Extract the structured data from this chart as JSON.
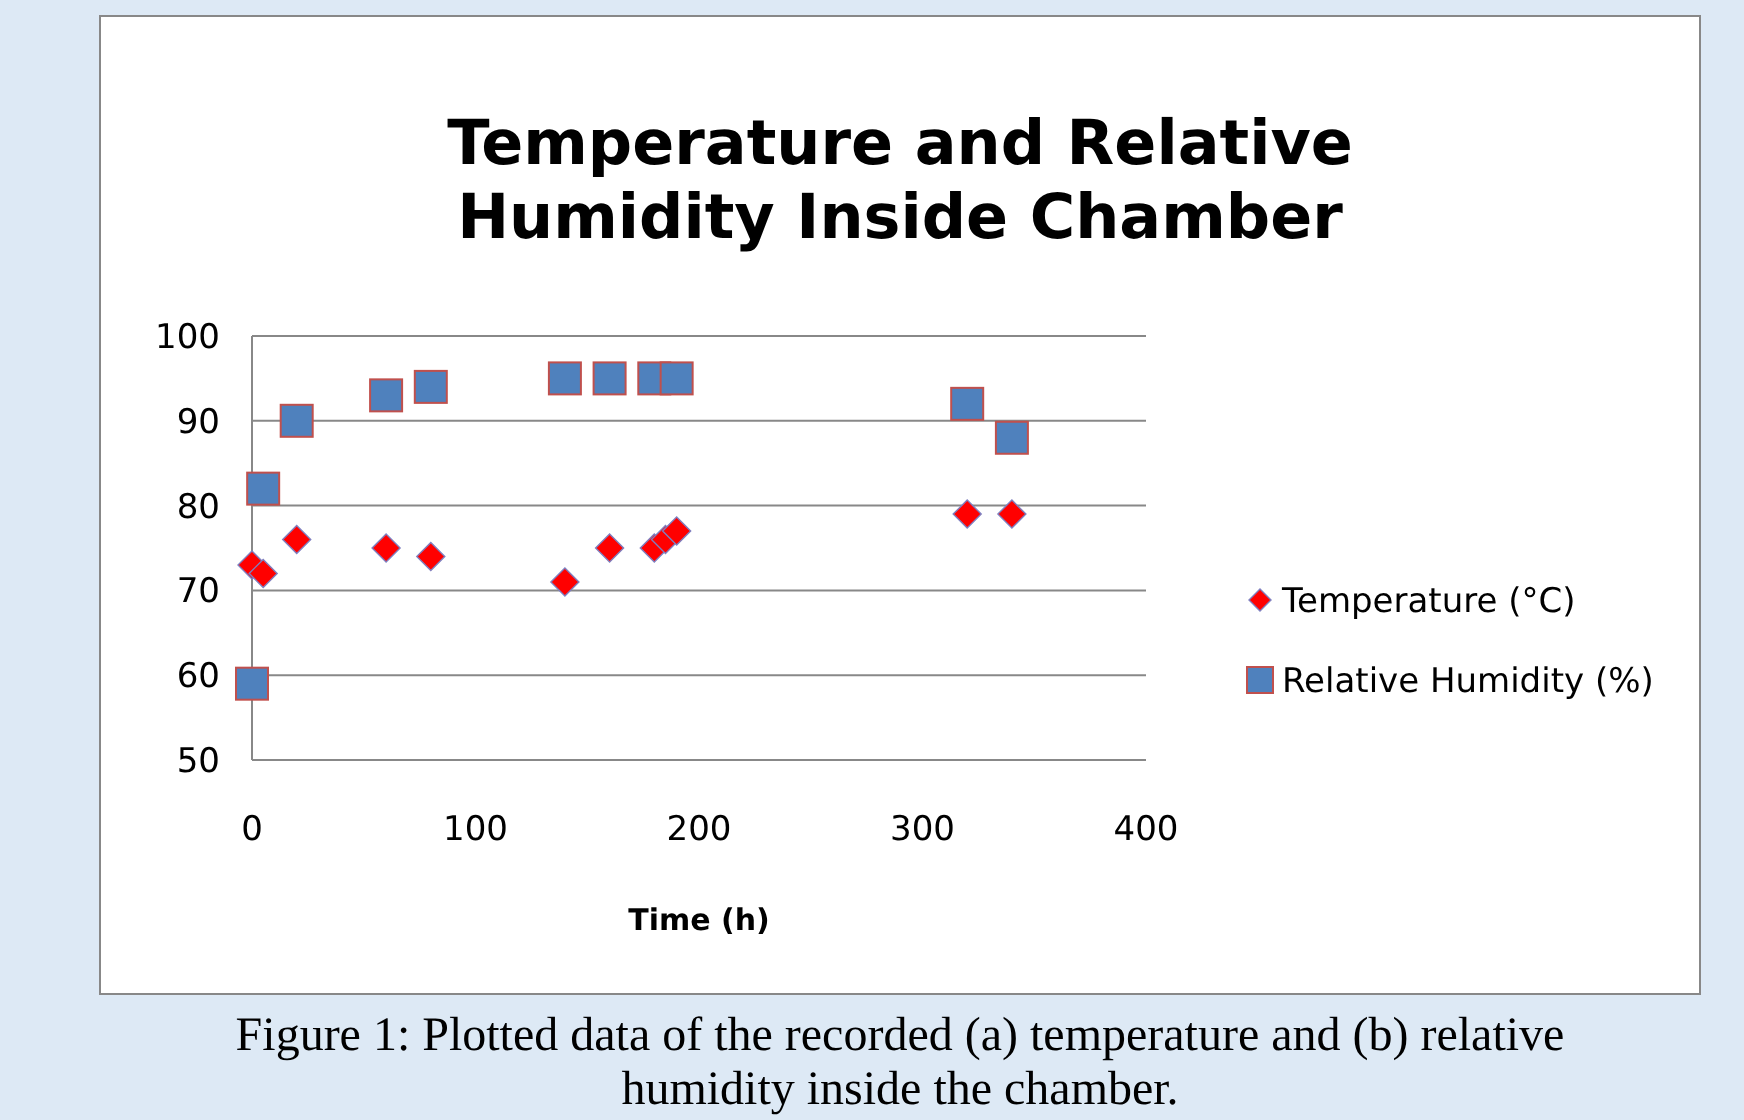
{
  "chart_data": {
    "type": "scatter",
    "title": "Temperature and Relative Humidity Inside Chamber",
    "xlabel": "Time (h)",
    "annotations": [
      "Figure 1: Plotted data of the recorded (a) temperature and (b) relative humidity inside the chamber."
    ],
    "x": [
      0,
      5,
      20,
      60,
      80,
      140,
      160,
      180,
      185,
      190,
      320,
      340
    ],
    "series": [
      {
        "name": "Temperature (°C)",
        "color": "#ff0000",
        "marker": "diamond",
        "values": [
          73,
          72,
          76,
          75,
          74,
          71,
          75,
          75,
          76,
          77,
          79,
          79
        ]
      },
      {
        "name": "Relative Humidity (%)",
        "color": "#4f81bd",
        "marker": "square",
        "values": [
          59,
          82,
          90,
          93,
          94,
          95,
          95,
          95,
          null,
          95,
          92,
          88
        ]
      }
    ],
    "xlim": [
      0,
      400
    ],
    "xticks": [
      0,
      100,
      200,
      300,
      400
    ],
    "ylim": [
      50,
      100
    ],
    "yticks": [
      50,
      60,
      70,
      80,
      90,
      100
    ],
    "grid": "y",
    "legend": "right"
  }
}
